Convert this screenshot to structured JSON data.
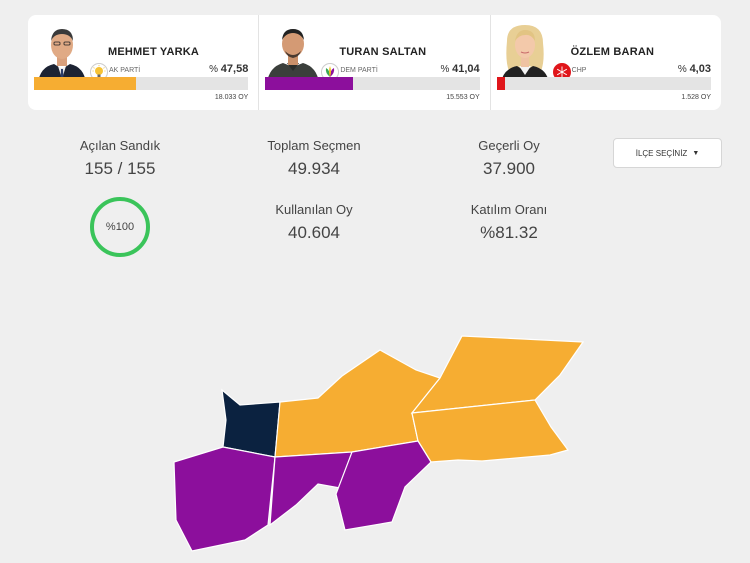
{
  "candidates": [
    {
      "name": "MEHMET YARKA",
      "party": "AK PARTİ",
      "percent_prefix": "% ",
      "percent": "47,58",
      "percent_value": 47.58,
      "votes": "18.033 OY",
      "color": "#f6ad32",
      "party_logo_icon": "ak-parti-bulb-icon"
    },
    {
      "name": "TURAN SALTAN",
      "party": "DEM PARTİ",
      "percent_prefix": "% ",
      "percent": "41,04",
      "percent_value": 41.04,
      "votes": "15.553 OY",
      "color": "#8c0f9c",
      "party_logo_icon": "dem-parti-leaf-icon"
    },
    {
      "name": "ÖZLEM BARAN",
      "party": "CHP",
      "percent_prefix": "% ",
      "percent": "4,03",
      "percent_value": 4.03,
      "votes": "1.528 OY",
      "color": "#e0161b",
      "party_logo_icon": "chp-six-arrows-icon"
    }
  ],
  "stats": {
    "opened_boxes": {
      "label": "Açılan Sandık",
      "value": "155 / 155"
    },
    "total_voters": {
      "label": "Toplam Seçmen",
      "value": "49.934"
    },
    "valid_votes": {
      "label": "Geçerli Oy",
      "value": "37.900"
    },
    "used_votes": {
      "label": "Kullanılan Oy",
      "value": "40.604"
    },
    "turnout": {
      "label": "Katılım Oranı",
      "value": "%81.32"
    },
    "progress": {
      "label": "%100",
      "value": 100
    }
  },
  "district_select": {
    "label": "İLÇE SEÇİNİZ",
    "icon": "caret-down-icon"
  },
  "map": {
    "colors": {
      "ak_parti": "#f6ad32",
      "dem_parti": "#8c0f9c",
      "other": "#0b2240"
    }
  }
}
